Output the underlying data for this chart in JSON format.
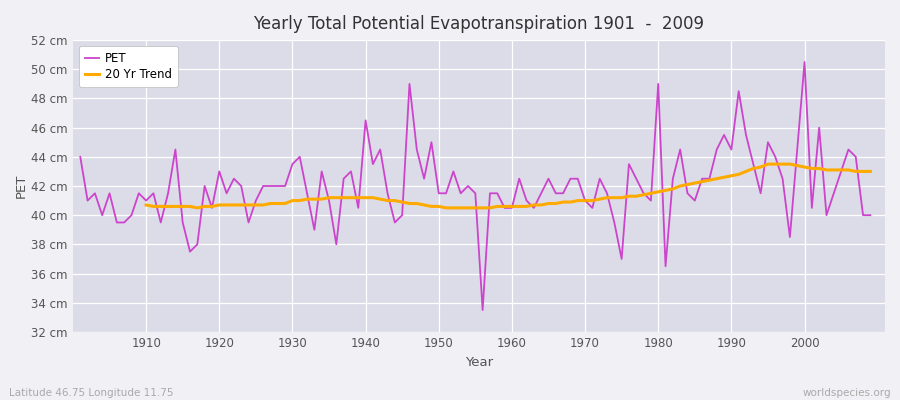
{
  "title": "Yearly Total Potential Evapotranspiration 1901  -  2009",
  "xlabel": "Year",
  "ylabel": "PET",
  "bottom_left_label": "Latitude 46.75 Longitude 11.75",
  "bottom_right_label": "worldspecies.org",
  "ylim": [
    32,
    52
  ],
  "ytick_labels": [
    "32 cm",
    "34 cm",
    "36 cm",
    "38 cm",
    "40 cm",
    "42 cm",
    "44 cm",
    "46 cm",
    "48 cm",
    "50 cm",
    "52 cm"
  ],
  "ytick_values": [
    32,
    34,
    36,
    38,
    40,
    42,
    44,
    46,
    48,
    50,
    52
  ],
  "pet_color": "#cc44cc",
  "trend_color": "#ffaa00",
  "fig_bg_color": "#f0f0f8",
  "plot_bg_color": "#e0e0ec",
  "legend_labels": [
    "PET",
    "20 Yr Trend"
  ],
  "years": [
    1901,
    1902,
    1903,
    1904,
    1905,
    1906,
    1907,
    1908,
    1909,
    1910,
    1911,
    1912,
    1913,
    1914,
    1915,
    1916,
    1917,
    1918,
    1919,
    1920,
    1921,
    1922,
    1923,
    1924,
    1925,
    1926,
    1927,
    1928,
    1929,
    1930,
    1931,
    1932,
    1933,
    1934,
    1935,
    1936,
    1937,
    1938,
    1939,
    1940,
    1941,
    1942,
    1943,
    1944,
    1945,
    1946,
    1947,
    1948,
    1949,
    1950,
    1951,
    1952,
    1953,
    1954,
    1955,
    1956,
    1957,
    1958,
    1959,
    1960,
    1961,
    1962,
    1963,
    1964,
    1965,
    1966,
    1967,
    1968,
    1969,
    1970,
    1971,
    1972,
    1973,
    1974,
    1975,
    1976,
    1977,
    1978,
    1979,
    1980,
    1981,
    1982,
    1983,
    1984,
    1985,
    1986,
    1987,
    1988,
    1989,
    1990,
    1991,
    1992,
    1993,
    1994,
    1995,
    1996,
    1997,
    1998,
    1999,
    2000,
    2001,
    2002,
    2003,
    2004,
    2005,
    2006,
    2007,
    2008,
    2009
  ],
  "pet_values": [
    44.0,
    41.0,
    41.5,
    40.0,
    41.5,
    39.5,
    39.5,
    40.0,
    41.5,
    41.0,
    41.5,
    39.5,
    41.5,
    44.5,
    39.5,
    37.5,
    38.0,
    42.0,
    40.5,
    43.0,
    41.5,
    42.5,
    42.0,
    39.5,
    41.0,
    42.0,
    42.0,
    42.0,
    42.0,
    43.5,
    44.0,
    41.5,
    39.0,
    43.0,
    41.0,
    38.0,
    42.5,
    43.0,
    40.5,
    46.5,
    43.5,
    44.5,
    41.5,
    39.5,
    40.0,
    49.0,
    44.5,
    42.5,
    45.0,
    41.5,
    41.5,
    43.0,
    41.5,
    42.0,
    41.5,
    33.5,
    41.5,
    41.5,
    40.5,
    40.5,
    42.5,
    41.0,
    40.5,
    41.5,
    42.5,
    41.5,
    41.5,
    42.5,
    42.5,
    41.0,
    40.5,
    42.5,
    41.5,
    39.5,
    37.0,
    43.5,
    42.5,
    41.5,
    41.0,
    49.0,
    36.5,
    42.5,
    44.5,
    41.5,
    41.0,
    42.5,
    42.5,
    44.5,
    45.5,
    44.5,
    48.5,
    45.5,
    43.5,
    41.5,
    45.0,
    44.0,
    42.5,
    38.5,
    44.5,
    50.5,
    40.5,
    46.0,
    40.0,
    41.5,
    43.0,
    44.5,
    44.0,
    40.0,
    40.0
  ],
  "trend_values": [
    null,
    null,
    null,
    null,
    null,
    null,
    null,
    null,
    null,
    40.7,
    40.6,
    40.6,
    40.6,
    40.6,
    40.6,
    40.6,
    40.5,
    40.6,
    40.6,
    40.7,
    40.7,
    40.7,
    40.7,
    40.7,
    40.7,
    40.7,
    40.8,
    40.8,
    40.8,
    41.0,
    41.0,
    41.1,
    41.1,
    41.1,
    41.2,
    41.2,
    41.2,
    41.2,
    41.2,
    41.2,
    41.2,
    41.1,
    41.0,
    41.0,
    40.9,
    40.8,
    40.8,
    40.7,
    40.6,
    40.6,
    40.5,
    40.5,
    40.5,
    40.5,
    40.5,
    40.5,
    40.5,
    40.6,
    40.6,
    40.6,
    40.6,
    40.6,
    40.7,
    40.7,
    40.8,
    40.8,
    40.9,
    40.9,
    41.0,
    41.0,
    41.0,
    41.1,
    41.2,
    41.2,
    41.2,
    41.3,
    41.3,
    41.4,
    41.5,
    41.6,
    41.7,
    41.8,
    42.0,
    42.1,
    42.2,
    42.3,
    42.4,
    42.5,
    42.6,
    42.7,
    42.8,
    43.0,
    43.2,
    43.3,
    43.5,
    43.5,
    43.5,
    43.5,
    43.4,
    43.3,
    43.2,
    43.2,
    43.1,
    43.1,
    43.1,
    43.1,
    43.0,
    43.0,
    43.0
  ]
}
